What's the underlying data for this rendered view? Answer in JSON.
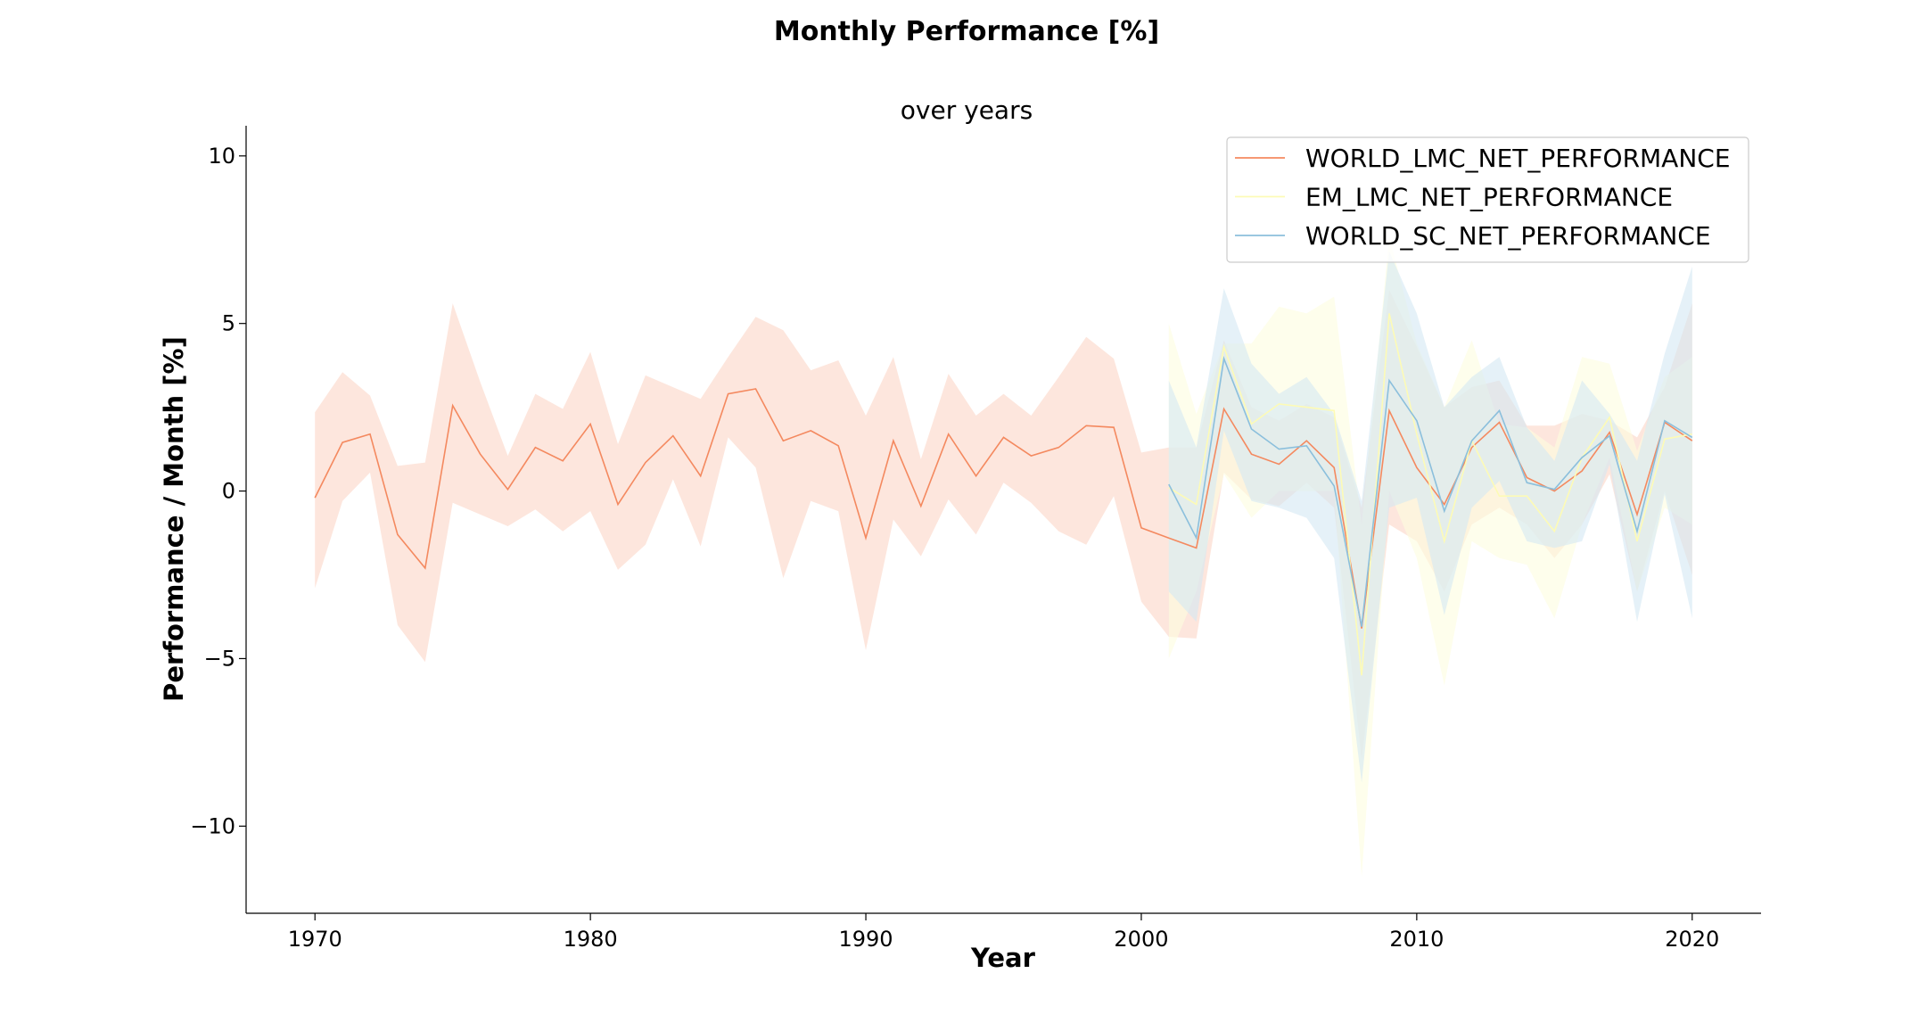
{
  "figure": {
    "suptitle": "Monthly Performance [%]"
  },
  "chart_data": {
    "type": "line",
    "title": "over years",
    "xlabel": "Year",
    "ylabel": "Performance / Month [%]",
    "xlim": [
      1967.5,
      2022.5
    ],
    "ylim": [
      -12.6,
      10.9
    ],
    "xticks": [
      1970,
      1980,
      1990,
      2000,
      2010,
      2020
    ],
    "xtick_labels": [
      "1970",
      "1980",
      "1990",
      "2000",
      "2010",
      "2020"
    ],
    "yticks": [
      10,
      5,
      0,
      -5,
      -10
    ],
    "ytick_labels": [
      "10",
      "5",
      "0",
      "−5",
      "−10"
    ],
    "grid": false,
    "legend_position": "top-right",
    "series": [
      {
        "name": "WORLD_LMC_NET_PERFORMANCE",
        "color": "#f4895f",
        "band_color": "#fbd6c6",
        "x": [
          1970,
          1971,
          1972,
          1973,
          1974,
          1975,
          1976,
          1977,
          1978,
          1979,
          1980,
          1981,
          1982,
          1983,
          1984,
          1985,
          1986,
          1987,
          1988,
          1989,
          1990,
          1991,
          1992,
          1993,
          1994,
          1995,
          1996,
          1997,
          1998,
          1999,
          2000,
          2001,
          2002,
          2003,
          2004,
          2005,
          2006,
          2007,
          2008,
          2009,
          2010,
          2011,
          2012,
          2013,
          2014,
          2015,
          2016,
          2017,
          2018,
          2019,
          2020
        ],
        "y": [
          -0.2,
          1.45,
          1.7,
          -1.3,
          -2.3,
          2.55,
          1.1,
          0.05,
          1.3,
          0.9,
          2.0,
          -0.4,
          0.85,
          1.65,
          0.45,
          2.9,
          3.05,
          1.5,
          1.8,
          1.35,
          -1.4,
          1.5,
          -0.45,
          1.7,
          0.45,
          1.6,
          1.05,
          1.3,
          1.95,
          1.9,
          -1.1,
          -1.4,
          -1.7,
          2.45,
          1.1,
          0.8,
          1.5,
          0.7,
          -4.1,
          2.4,
          0.7,
          -0.4,
          1.3,
          2.05,
          0.4,
          0.0,
          0.6,
          1.75,
          -0.7,
          2.05,
          1.5
        ],
        "lower": [
          -2.9,
          -0.3,
          0.55,
          -4.0,
          -5.1,
          -0.35,
          -0.7,
          -1.05,
          -0.55,
          -1.2,
          -0.6,
          -2.35,
          -1.6,
          0.35,
          -1.65,
          1.6,
          0.7,
          -2.6,
          -0.3,
          -0.6,
          -4.75,
          -0.85,
          -1.95,
          -0.25,
          -1.3,
          0.25,
          -0.35,
          -1.2,
          -1.6,
          -0.15,
          -3.3,
          -4.35,
          -4.4,
          0.55,
          -0.25,
          -0.45,
          0.25,
          -0.5,
          -8.0,
          -1.0,
          -1.5,
          -3.0,
          -1.0,
          -0.5,
          -1.0,
          -2.0,
          -1.0,
          0.5,
          -3.0,
          0.0,
          -2.5
        ],
        "upper": [
          2.35,
          3.55,
          2.85,
          0.75,
          0.85,
          5.6,
          3.25,
          1.05,
          2.9,
          2.45,
          4.15,
          1.4,
          3.45,
          3.1,
          2.75,
          4.0,
          5.2,
          4.8,
          3.6,
          3.9,
          2.25,
          4.0,
          0.95,
          3.5,
          2.25,
          2.9,
          2.25,
          3.4,
          4.6,
          3.95,
          1.15,
          1.3,
          1.3,
          4.5,
          2.5,
          2.1,
          2.6,
          2.2,
          -0.5,
          6.0,
          4.3,
          2.5,
          3.1,
          3.3,
          1.95,
          1.95,
          2.3,
          2.1,
          1.6,
          3.1,
          5.6
        ]
      },
      {
        "name": "EM_LMC_NET_PERFORMANCE",
        "color": "#fdfbb6",
        "band_color": "#fefde0",
        "x": [
          2001,
          2002,
          2003,
          2004,
          2005,
          2006,
          2007,
          2008,
          2009,
          2010,
          2011,
          2012,
          2013,
          2014,
          2015,
          2016,
          2017,
          2018,
          2019,
          2020
        ],
        "y": [
          0.1,
          -0.4,
          4.3,
          2.0,
          2.6,
          2.5,
          2.4,
          -5.5,
          5.3,
          1.7,
          -1.5,
          1.5,
          -0.15,
          -0.15,
          -1.2,
          1.0,
          2.2,
          -1.5,
          1.55,
          1.7
        ],
        "lower": [
          -5.0,
          -3.0,
          0.5,
          -0.8,
          0.0,
          0.0,
          0.0,
          -11.5,
          0.0,
          -2.0,
          -5.8,
          -1.5,
          -2.0,
          -2.2,
          -3.8,
          -1.0,
          1.0,
          -3.0,
          -0.5,
          -1.0
        ],
        "upper": [
          5.0,
          2.3,
          4.4,
          4.4,
          5.5,
          5.3,
          5.8,
          -1.0,
          7.6,
          4.4,
          2.5,
          4.5,
          2.0,
          1.9,
          1.3,
          4.0,
          3.8,
          1.2,
          3.4,
          4.0
        ]
      },
      {
        "name": "WORLD_SC_NET_PERFORMANCE",
        "color": "#8bbfdc",
        "band_color": "#d4e8f3",
        "x": [
          2001,
          2002,
          2003,
          2004,
          2005,
          2006,
          2007,
          2008,
          2009,
          2010,
          2011,
          2012,
          2013,
          2014,
          2015,
          2016,
          2017,
          2018,
          2019,
          2020
        ],
        "y": [
          0.2,
          -1.4,
          3.95,
          1.85,
          1.25,
          1.35,
          0.15,
          -4.05,
          3.3,
          2.1,
          -0.6,
          1.5,
          2.4,
          0.25,
          0.05,
          1.0,
          1.65,
          -1.2,
          2.1,
          1.6
        ],
        "lower": [
          -3.0,
          -3.9,
          1.8,
          -0.3,
          -0.5,
          -0.8,
          -2.0,
          -8.7,
          -0.5,
          -0.2,
          -3.7,
          -0.5,
          0.3,
          -1.5,
          -1.7,
          -1.5,
          0.8,
          -3.9,
          -0.1,
          -3.8
        ],
        "upper": [
          3.3,
          1.3,
          6.05,
          3.8,
          2.9,
          3.4,
          2.3,
          -0.3,
          7.15,
          5.3,
          2.5,
          3.4,
          4.0,
          1.9,
          0.9,
          3.3,
          2.3,
          0.9,
          4.1,
          6.7
        ]
      }
    ]
  }
}
